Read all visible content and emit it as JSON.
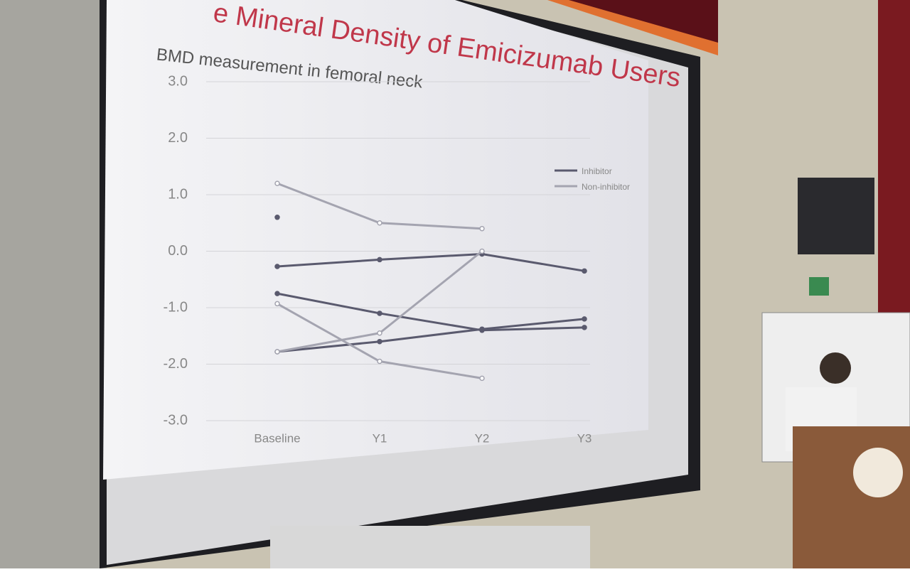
{
  "chart_data": {
    "type": "line",
    "title": "e Mineral Density of Emicizumab Users",
    "subtitle": "BMD measurement in femoral neck",
    "categories": [
      "Baseline",
      "Y1",
      "Y2",
      "Y3"
    ],
    "series": [
      {
        "name": "Inhibitor",
        "color": "#5a5a6e",
        "lines": [
          [
            -0.27,
            -0.15,
            -0.05,
            -0.35
          ],
          [
            -0.75,
            -1.1,
            -1.4,
            -1.35
          ],
          [
            -1.78,
            -1.6,
            -1.38,
            -1.2
          ],
          [
            0.6,
            null,
            null,
            null
          ]
        ]
      },
      {
        "name": "Non-inhibitor",
        "color": "#a4a4b0",
        "lines": [
          [
            1.2,
            0.5,
            0.4,
            null
          ],
          [
            -0.93,
            -1.95,
            -2.25,
            null
          ],
          [
            -1.78,
            -1.45,
            0.0,
            null
          ]
        ]
      }
    ],
    "ylim": [
      -3,
      3
    ],
    "yticks": [
      {
        "value": 3,
        "label": "3.0"
      },
      {
        "value": 2,
        "label": "2.0"
      },
      {
        "value": 1,
        "label": "1.0"
      },
      {
        "value": 0,
        "label": "0.0"
      },
      {
        "value": -1,
        "label": "-1.0"
      },
      {
        "value": -2,
        "label": "-2.0"
      },
      {
        "value": -3,
        "label": "-3.0"
      }
    ],
    "grid": true
  }
}
